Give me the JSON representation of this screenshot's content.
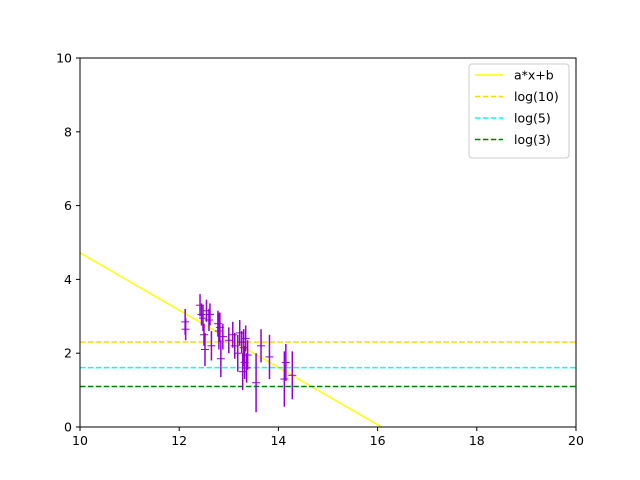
{
  "chart_data": {
    "type": "scatter",
    "title": "",
    "xlabel": "",
    "ylabel": "",
    "xlim": [
      10,
      20
    ],
    "ylim": [
      0,
      10
    ],
    "xticks": [
      10,
      12,
      14,
      16,
      18,
      20
    ],
    "yticks": [
      0,
      2,
      4,
      6,
      8,
      10
    ],
    "grid": false,
    "legend_position": "top-right",
    "fit_line": {
      "name": "a*x+b",
      "color": "#ffff00",
      "x": [
        10,
        16.08
      ],
      "y": [
        4.72,
        0
      ]
    },
    "hlines": [
      {
        "name": "log(10)",
        "value": 2.302585,
        "color": "#ffd700"
      },
      {
        "name": "log(5)",
        "value": 1.609438,
        "color": "#00ffff"
      },
      {
        "name": "log(3)",
        "value": 1.098612,
        "color": "#008000"
      }
    ],
    "scatter_series": {
      "color": "#9400d3",
      "points": [
        {
          "x": 12.12,
          "y": 2.85,
          "yerr": 0.35
        },
        {
          "x": 12.13,
          "y": 2.65,
          "yerr": 0.3
        },
        {
          "x": 12.42,
          "y": 3.3,
          "yerr": 0.3
        },
        {
          "x": 12.45,
          "y": 3.05,
          "yerr": 0.3
        },
        {
          "x": 12.48,
          "y": 2.95,
          "yerr": 0.35
        },
        {
          "x": 12.5,
          "y": 2.5,
          "yerr": 0.3
        },
        {
          "x": 12.52,
          "y": 2.1,
          "yerr": 0.45
        },
        {
          "x": 12.55,
          "y": 3.15,
          "yerr": 0.3
        },
        {
          "x": 12.6,
          "y": 2.9,
          "yerr": 0.3
        },
        {
          "x": 12.62,
          "y": 3.05,
          "yerr": 0.3
        },
        {
          "x": 12.65,
          "y": 2.2,
          "yerr": 0.4
        },
        {
          "x": 12.78,
          "y": 2.8,
          "yerr": 0.35
        },
        {
          "x": 12.8,
          "y": 2.6,
          "yerr": 0.5
        },
        {
          "x": 12.82,
          "y": 2.7,
          "yerr": 0.4
        },
        {
          "x": 12.84,
          "y": 1.85,
          "yerr": 0.5
        },
        {
          "x": 12.88,
          "y": 2.45,
          "yerr": 0.35
        },
        {
          "x": 13.0,
          "y": 2.35,
          "yerr": 0.35
        },
        {
          "x": 13.08,
          "y": 2.5,
          "yerr": 0.35
        },
        {
          "x": 13.12,
          "y": 2.2,
          "yerr": 0.35
        },
        {
          "x": 13.18,
          "y": 2.0,
          "yerr": 0.5
        },
        {
          "x": 13.22,
          "y": 2.55,
          "yerr": 0.35
        },
        {
          "x": 13.26,
          "y": 2.3,
          "yerr": 0.3
        },
        {
          "x": 13.28,
          "y": 1.5,
          "yerr": 0.5
        },
        {
          "x": 13.3,
          "y": 2.15,
          "yerr": 0.5
        },
        {
          "x": 13.32,
          "y": 1.75,
          "yerr": 0.45
        },
        {
          "x": 13.34,
          "y": 2.4,
          "yerr": 0.35
        },
        {
          "x": 13.36,
          "y": 1.6,
          "yerr": 0.4
        },
        {
          "x": 13.38,
          "y": 1.95,
          "yerr": 0.4
        },
        {
          "x": 13.55,
          "y": 1.2,
          "yerr": 0.8
        },
        {
          "x": 13.65,
          "y": 2.2,
          "yerr": 0.45
        },
        {
          "x": 13.82,
          "y": 1.9,
          "yerr": 0.6
        },
        {
          "x": 14.12,
          "y": 1.3,
          "yerr": 0.75
        },
        {
          "x": 14.15,
          "y": 1.75,
          "yerr": 0.5
        },
        {
          "x": 14.28,
          "y": 1.4,
          "yerr": 0.65
        }
      ]
    }
  }
}
